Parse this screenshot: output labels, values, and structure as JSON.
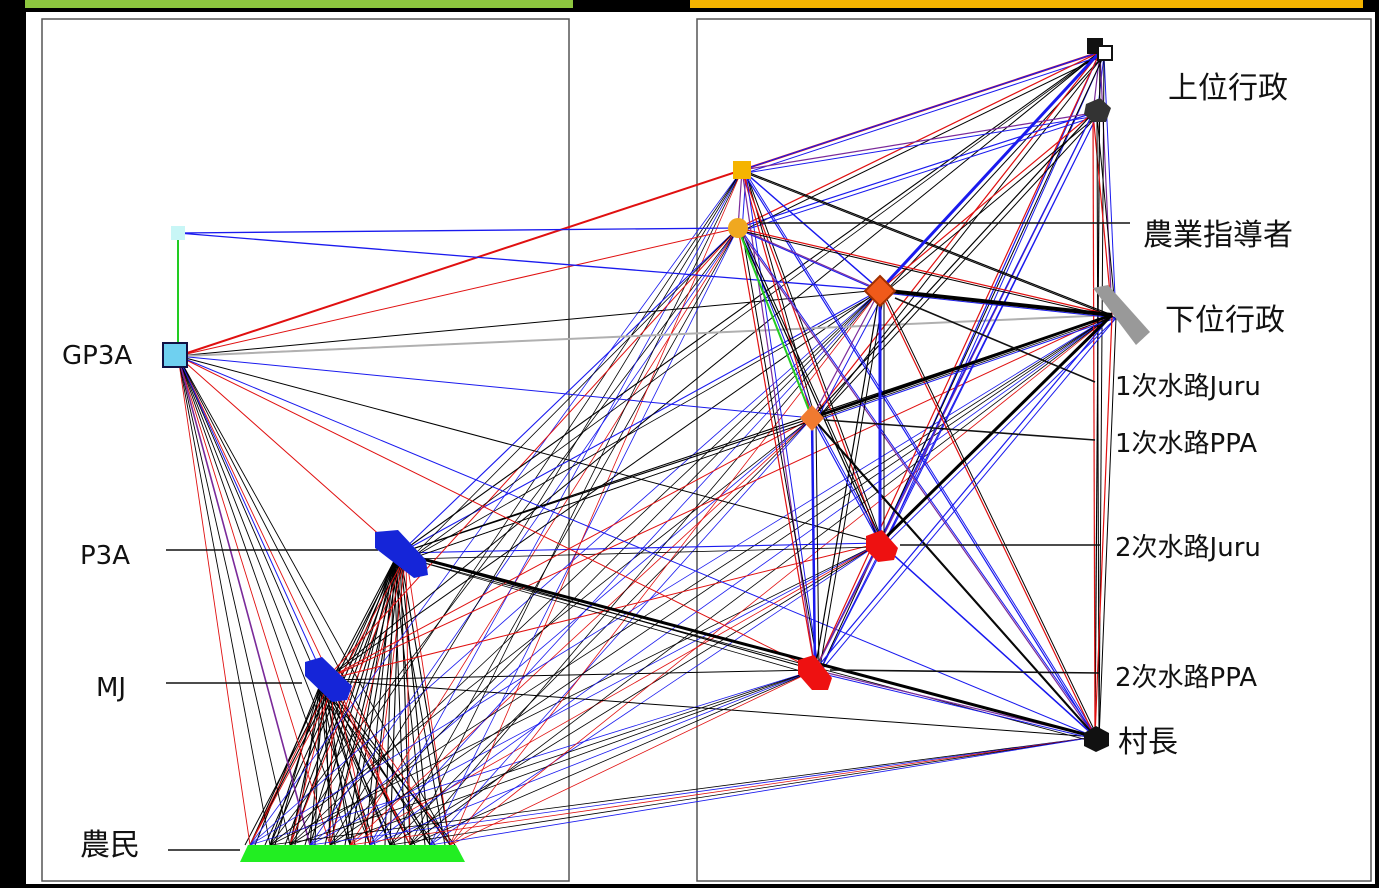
{
  "colors": {
    "frame": "#000000",
    "panel": "#ffffff",
    "bar_left": "#8dc63f",
    "bar_right": "#f5b400",
    "edge_black": "#000000",
    "edge_red": "#e01010",
    "edge_blue": "#1a1aee",
    "edge_purple": "#7a2a9a",
    "edge_green": "#22cc22",
    "edge_gray": "#b0b0b0"
  },
  "labels": {
    "upper_admin": "上位行政",
    "agri_instructor": "農業指導者",
    "lower_admin": "下位行政",
    "primary_juru": "1次水路Juru",
    "primary_ppa": "1次水路PPA",
    "secondary_juru": "2次水路Juru",
    "secondary_ppa": "2次水路PPA",
    "village_head": "村長",
    "gp3a": "GP3A",
    "p3a": "P3A",
    "mj": "MJ",
    "farmers": "農民"
  },
  "nodes": [
    {
      "id": "gp3a",
      "shape": "square",
      "color": "#6fd0f0"
    },
    {
      "id": "gp3a_top",
      "shape": "square",
      "color": "#c8f6f6"
    },
    {
      "id": "p3a",
      "shape": "arrow",
      "color": "#1525d8"
    },
    {
      "id": "mj",
      "shape": "arrow",
      "color": "#1525d8"
    },
    {
      "id": "farmers",
      "shape": "bar",
      "color": "#22ee22"
    },
    {
      "id": "upper1",
      "shape": "square",
      "color": "#111111"
    },
    {
      "id": "upper2",
      "shape": "hexagon",
      "color": "#333333"
    },
    {
      "id": "agri1",
      "shape": "square",
      "color": "#f5b400"
    },
    {
      "id": "agri2",
      "shape": "circle",
      "color": "#f0a820"
    },
    {
      "id": "pj",
      "shape": "diamond",
      "color": "#f05a1a"
    },
    {
      "id": "ppa1",
      "shape": "diamond",
      "color": "#f07a30"
    },
    {
      "id": "lower",
      "shape": "bar",
      "color": "#999999"
    },
    {
      "id": "sj",
      "shape": "arrow",
      "color": "#ee1111"
    },
    {
      "id": "sppa",
      "shape": "arrow",
      "color": "#ee1111"
    },
    {
      "id": "village",
      "shape": "hexagon",
      "color": "#111111"
    }
  ]
}
